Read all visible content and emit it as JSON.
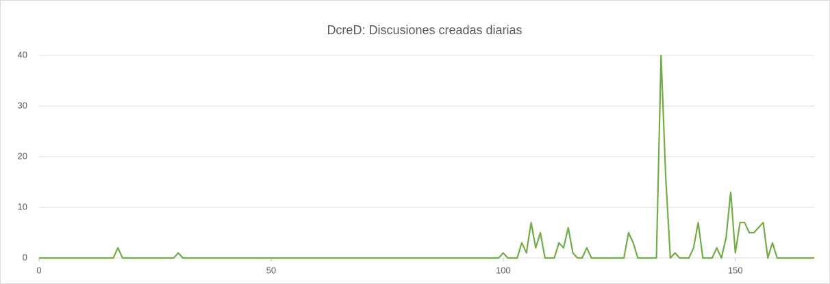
{
  "chart_data": {
    "type": "line",
    "title": "DcreD: Discusiones creadas diarias",
    "x": [
      0,
      1,
      2,
      3,
      4,
      5,
      6,
      7,
      8,
      9,
      10,
      11,
      12,
      13,
      14,
      15,
      16,
      17,
      18,
      19,
      20,
      21,
      22,
      23,
      24,
      25,
      26,
      27,
      28,
      29,
      30,
      31,
      32,
      33,
      34,
      35,
      36,
      37,
      38,
      39,
      40,
      41,
      42,
      43,
      44,
      45,
      46,
      47,
      48,
      49,
      50,
      51,
      52,
      53,
      54,
      55,
      56,
      57,
      58,
      59,
      60,
      61,
      62,
      63,
      64,
      65,
      66,
      67,
      68,
      69,
      70,
      71,
      72,
      73,
      74,
      75,
      76,
      77,
      78,
      79,
      80,
      81,
      82,
      83,
      84,
      85,
      86,
      87,
      88,
      89,
      90,
      91,
      92,
      93,
      94,
      95,
      96,
      97,
      98,
      99,
      100,
      101,
      102,
      103,
      104,
      105,
      106,
      107,
      108,
      109,
      110,
      111,
      112,
      113,
      114,
      115,
      116,
      117,
      118,
      119,
      120,
      121,
      122,
      123,
      124,
      125,
      126,
      127,
      128,
      129,
      130,
      131,
      132,
      133,
      134,
      135,
      136,
      137,
      138,
      139,
      140,
      141,
      142,
      143,
      144,
      145,
      146,
      147,
      148,
      149,
      150,
      151,
      152,
      153,
      154,
      155,
      156,
      157,
      158,
      159,
      160,
      161,
      162,
      163,
      164,
      165,
      166,
      167
    ],
    "series": [
      {
        "name": "DcreD",
        "color": "#70ad47",
        "values": [
          0,
          0,
          0,
          0,
          0,
          0,
          0,
          0,
          0,
          0,
          0,
          0,
          0,
          0,
          0,
          0,
          0,
          2,
          0,
          0,
          0,
          0,
          0,
          0,
          0,
          0,
          0,
          0,
          0,
          0,
          1,
          0,
          0,
          0,
          0,
          0,
          0,
          0,
          0,
          0,
          0,
          0,
          0,
          0,
          0,
          0,
          0,
          0,
          0,
          0,
          0,
          0,
          0,
          0,
          0,
          0,
          0,
          0,
          0,
          0,
          0,
          0,
          0,
          0,
          0,
          0,
          0,
          0,
          0,
          0,
          0,
          0,
          0,
          0,
          0,
          0,
          0,
          0,
          0,
          0,
          0,
          0,
          0,
          0,
          0,
          0,
          0,
          0,
          0,
          0,
          0,
          0,
          0,
          0,
          0,
          0,
          0,
          0,
          0,
          0,
          1,
          0,
          0,
          0,
          3,
          1,
          7,
          2,
          5,
          0,
          0,
          0,
          3,
          2,
          6,
          1,
          0,
          0,
          2,
          0,
          0,
          0,
          0,
          0,
          0,
          0,
          0,
          5,
          3,
          0,
          0,
          0,
          0,
          0,
          40,
          16,
          0,
          1,
          0,
          0,
          0,
          2,
          7,
          0,
          0,
          0,
          2,
          0,
          4,
          13,
          1,
          7,
          7,
          5,
          5,
          6,
          7,
          0,
          3,
          0,
          0,
          0,
          0,
          0,
          0,
          0,
          0,
          0
        ]
      }
    ],
    "xlim": [
      0,
      167
    ],
    "xticks": [
      0,
      50,
      100,
      150
    ],
    "ylim": [
      0,
      40
    ],
    "yticks": [
      0,
      10,
      20,
      30,
      40
    ],
    "grid": true
  }
}
